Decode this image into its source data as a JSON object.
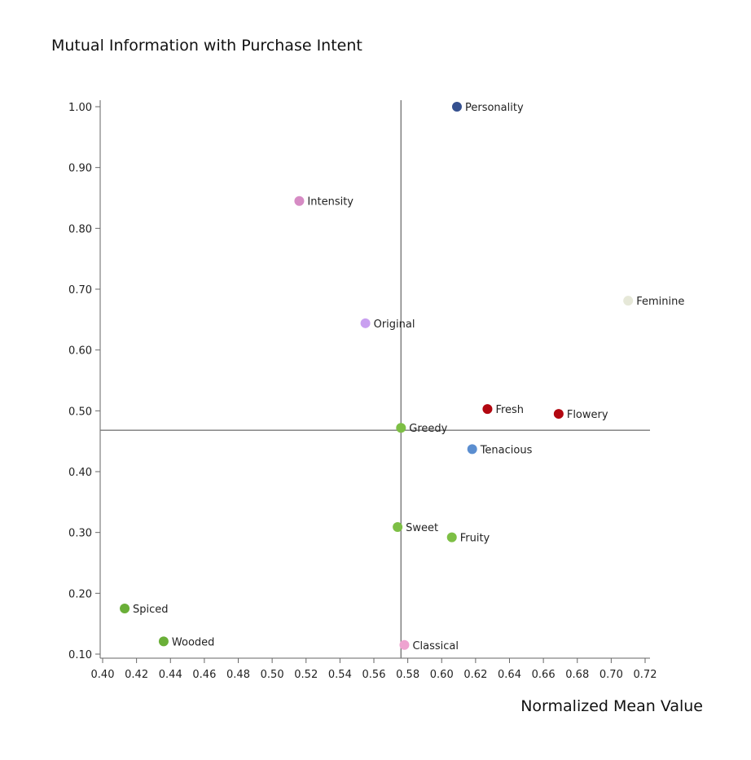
{
  "chart_data": {
    "type": "scatter",
    "ylabel": "Mutual Information with Purchase Intent",
    "xlabel": "Normalized Mean Value",
    "xlim": [
      0.4,
      0.72
    ],
    "ylim": [
      0.1,
      1.0
    ],
    "x_ticks": [
      "0.40",
      "0.42",
      "0.44",
      "0.46",
      "0.48",
      "0.50",
      "0.52",
      "0.54",
      "0.56",
      "0.58",
      "0.60",
      "0.62",
      "0.64",
      "0.66",
      "0.68",
      "0.70",
      "0.72"
    ],
    "y_ticks": [
      "0.10",
      "0.20",
      "0.30",
      "0.40",
      "0.50",
      "0.60",
      "0.70",
      "0.80",
      "0.90",
      "1.00"
    ],
    "reference_lines": {
      "x": 0.576,
      "y": 0.468
    },
    "grid": false,
    "points": [
      {
        "label": "Personality",
        "x": 0.609,
        "y": 1.0,
        "color": "#35508f"
      },
      {
        "label": "Intensity",
        "x": 0.516,
        "y": 0.845,
        "color": "#d68bc4"
      },
      {
        "label": "Feminine",
        "x": 0.71,
        "y": 0.681,
        "color": "#e6e8d8"
      },
      {
        "label": "Original",
        "x": 0.555,
        "y": 0.644,
        "color": "#c9a0f0"
      },
      {
        "label": "Fresh",
        "x": 0.627,
        "y": 0.503,
        "color": "#b20710"
      },
      {
        "label": "Flowery",
        "x": 0.669,
        "y": 0.495,
        "color": "#b20710"
      },
      {
        "label": "Greedy",
        "x": 0.576,
        "y": 0.472,
        "color": "#7dbf45"
      },
      {
        "label": "Tenacious",
        "x": 0.618,
        "y": 0.437,
        "color": "#5b8ed0"
      },
      {
        "label": "Sweet",
        "x": 0.574,
        "y": 0.309,
        "color": "#7dbf45"
      },
      {
        "label": "Fruity",
        "x": 0.606,
        "y": 0.292,
        "color": "#7dbf45"
      },
      {
        "label": "Spiced",
        "x": 0.413,
        "y": 0.175,
        "color": "#6aaf38"
      },
      {
        "label": "Wooded",
        "x": 0.436,
        "y": 0.121,
        "color": "#6aaf38"
      },
      {
        "label": "Classical",
        "x": 0.578,
        "y": 0.115,
        "color": "#eea3d0"
      }
    ]
  }
}
